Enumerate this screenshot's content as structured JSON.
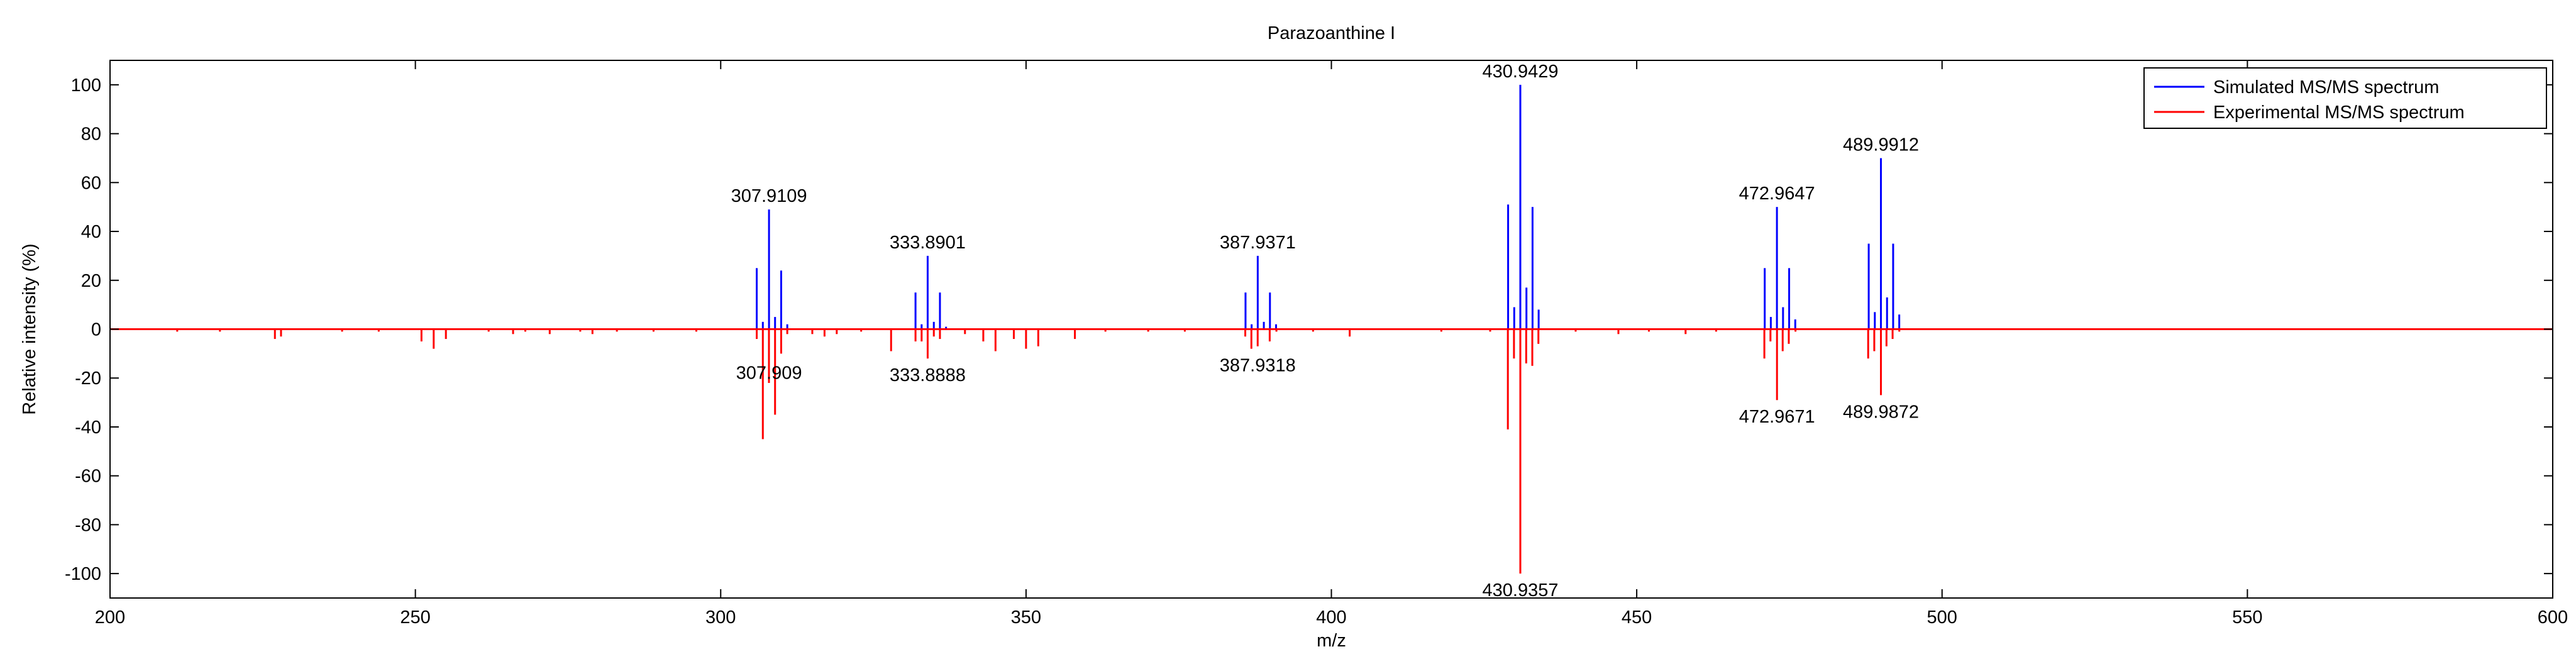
{
  "chart_data": {
    "type": "line",
    "title": "Parazoanthine I",
    "xlabel": "m/z",
    "ylabel": "Relative intensity (%)",
    "xlim": [
      200,
      600
    ],
    "ylim": [
      -110,
      110
    ],
    "xticks": [
      200,
      250,
      300,
      350,
      400,
      450,
      500,
      550,
      600
    ],
    "yticks": [
      100,
      80,
      60,
      40,
      20,
      0,
      -20,
      -40,
      -60,
      -80,
      -100
    ],
    "legend_position": "top-right",
    "series": [
      {
        "name": "Simulated MS/MS spectrum",
        "color": "#0000ff",
        "peaks": [
          [
            305.9,
            25
          ],
          [
            306.9,
            3
          ],
          [
            307.91,
            49
          ],
          [
            308.9,
            5
          ],
          [
            309.9,
            24
          ],
          [
            310.9,
            2
          ],
          [
            331.9,
            15
          ],
          [
            332.9,
            2
          ],
          [
            333.89,
            30
          ],
          [
            334.9,
            3
          ],
          [
            335.9,
            15
          ],
          [
            336.9,
            1
          ],
          [
            385.94,
            15
          ],
          [
            386.94,
            2
          ],
          [
            387.94,
            30
          ],
          [
            388.94,
            3
          ],
          [
            389.94,
            15
          ],
          [
            390.94,
            2
          ],
          [
            428.94,
            51
          ],
          [
            429.94,
            9
          ],
          [
            430.94,
            100
          ],
          [
            431.94,
            17
          ],
          [
            432.94,
            50
          ],
          [
            433.94,
            8
          ],
          [
            470.96,
            25
          ],
          [
            471.96,
            5
          ],
          [
            472.96,
            50
          ],
          [
            473.96,
            9
          ],
          [
            474.96,
            25
          ],
          [
            475.96,
            4
          ],
          [
            487.99,
            35
          ],
          [
            488.99,
            7
          ],
          [
            489.99,
            70
          ],
          [
            490.99,
            13
          ],
          [
            491.99,
            35
          ],
          [
            492.99,
            6
          ]
        ]
      },
      {
        "name": "Experimental MS/MS spectrum",
        "color": "#ff0000",
        "peaks": [
          [
            211,
            -1
          ],
          [
            218,
            -1
          ],
          [
            227,
            -4
          ],
          [
            228,
            -3
          ],
          [
            238,
            -1
          ],
          [
            244,
            -1
          ],
          [
            251,
            -5
          ],
          [
            253,
            -8
          ],
          [
            255,
            -4
          ],
          [
            262,
            -1
          ],
          [
            266,
            -2
          ],
          [
            268,
            -1
          ],
          [
            272,
            -2
          ],
          [
            277,
            -1
          ],
          [
            279,
            -2
          ],
          [
            283,
            -1
          ],
          [
            289,
            -1
          ],
          [
            296,
            -1
          ],
          [
            305.9,
            -4
          ],
          [
            306.9,
            -45
          ],
          [
            307.9,
            -22
          ],
          [
            308.9,
            -35
          ],
          [
            309.9,
            -10
          ],
          [
            310.9,
            -2
          ],
          [
            315,
            -2
          ],
          [
            317,
            -3
          ],
          [
            319,
            -2
          ],
          [
            323,
            -1
          ],
          [
            327.9,
            -9
          ],
          [
            331.9,
            -5
          ],
          [
            332.9,
            -5
          ],
          [
            333.89,
            -12
          ],
          [
            334.9,
            -3
          ],
          [
            335.9,
            -4
          ],
          [
            340,
            -2
          ],
          [
            343,
            -5
          ],
          [
            345,
            -9
          ],
          [
            348,
            -4
          ],
          [
            350,
            -8
          ],
          [
            352,
            -7
          ],
          [
            358,
            -4
          ],
          [
            363,
            -1
          ],
          [
            370,
            -1
          ],
          [
            376,
            -1
          ],
          [
            385.9,
            -3
          ],
          [
            386.9,
            -8
          ],
          [
            387.93,
            -7
          ],
          [
            389.9,
            -5
          ],
          [
            391,
            -1
          ],
          [
            397,
            -1
          ],
          [
            403,
            -3
          ],
          [
            418,
            -1
          ],
          [
            426,
            -1
          ],
          [
            428.9,
            -41
          ],
          [
            429.9,
            -12
          ],
          [
            430.94,
            -100
          ],
          [
            431.9,
            -14
          ],
          [
            432.9,
            -15
          ],
          [
            433.9,
            -6
          ],
          [
            440,
            -1
          ],
          [
            447,
            -2
          ],
          [
            452,
            -1
          ],
          [
            458,
            -2
          ],
          [
            463,
            -1
          ],
          [
            470.9,
            -12
          ],
          [
            471.9,
            -5
          ],
          [
            472.97,
            -29
          ],
          [
            473.9,
            -9
          ],
          [
            474.9,
            -6
          ],
          [
            476,
            -1
          ],
          [
            487.9,
            -12
          ],
          [
            488.9,
            -9
          ],
          [
            489.99,
            -27
          ],
          [
            490.9,
            -7
          ],
          [
            491.9,
            -4
          ],
          [
            493,
            -1
          ]
        ]
      }
    ],
    "annotations": [
      {
        "text": "307.9109",
        "x": 307.91,
        "y": 49,
        "side": "above"
      },
      {
        "text": "333.8901",
        "x": 333.89,
        "y": 30,
        "side": "above"
      },
      {
        "text": "387.9371",
        "x": 387.94,
        "y": 30,
        "side": "above"
      },
      {
        "text": "430.9429",
        "x": 430.94,
        "y": 100,
        "side": "above"
      },
      {
        "text": "472.9647",
        "x": 472.96,
        "y": 50,
        "side": "above"
      },
      {
        "text": "489.9912",
        "x": 489.99,
        "y": 70,
        "side": "above"
      },
      {
        "text": "307.909",
        "x": 307.91,
        "y": -11,
        "side": "below"
      },
      {
        "text": "333.8888",
        "x": 333.89,
        "y": -12,
        "side": "below"
      },
      {
        "text": "387.9318",
        "x": 387.93,
        "y": -8,
        "side": "below"
      },
      {
        "text": "430.9357",
        "x": 430.94,
        "y": -100,
        "side": "below"
      },
      {
        "text": "472.9671",
        "x": 472.97,
        "y": -29,
        "side": "below"
      },
      {
        "text": "489.9872",
        "x": 489.99,
        "y": -27,
        "side": "below"
      }
    ]
  }
}
